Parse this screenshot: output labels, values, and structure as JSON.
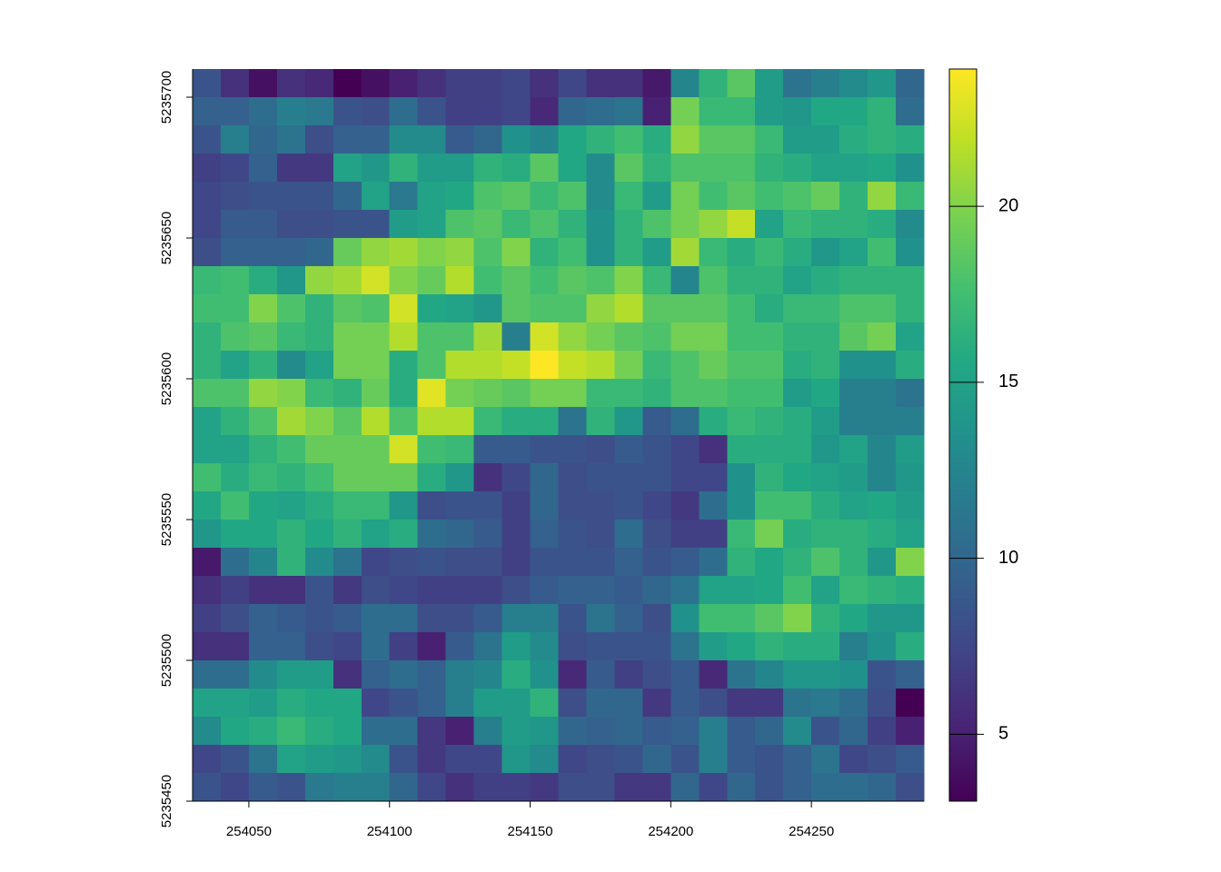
{
  "chart_data": {
    "type": "raster",
    "colormap": "viridis",
    "xlim": [
      254030,
      254290
    ],
    "ylim": [
      5235450,
      5235710
    ],
    "zlim": [
      3.1,
      23.9
    ],
    "xticks": [
      254050,
      254100,
      254150,
      254200,
      254250
    ],
    "yticks": [
      5235450,
      5235500,
      5235550,
      5235600,
      5235650,
      5235700
    ],
    "colorbar_ticks": [
      5,
      10,
      15,
      20
    ],
    "z": [
      [
        8.5,
        6,
        4,
        6,
        5.5,
        3.1,
        4,
        5,
        6,
        7,
        7,
        7.5,
        6,
        7.5,
        6,
        6,
        4.5,
        12.5,
        16.5,
        18.5,
        14.5,
        11,
        12,
        13,
        14,
        10
      ],
      [
        9.5,
        9.5,
        10.5,
        12,
        11.5,
        8.5,
        8,
        10.5,
        8.5,
        7,
        7,
        7.5,
        5.5,
        10,
        10.5,
        11,
        5,
        19.5,
        17,
        17,
        14.5,
        14,
        15.5,
        15.5,
        16.5,
        10.5
      ],
      [
        8.5,
        12,
        10,
        11,
        8,
        9.5,
        9.5,
        13,
        13,
        9,
        10,
        13.5,
        12.5,
        15.5,
        16.5,
        17.5,
        16,
        20.5,
        18.5,
        18.5,
        17,
        14.5,
        14.5,
        16,
        16.5,
        16
      ],
      [
        7,
        7.5,
        9.5,
        6.5,
        6.5,
        15,
        14,
        16.5,
        14.5,
        14.5,
        16.5,
        16,
        18.5,
        15.5,
        13,
        18.5,
        16.5,
        18,
        18,
        18,
        16.5,
        16,
        15,
        15,
        15.5,
        13.5
      ],
      [
        7.5,
        8,
        8.5,
        8.5,
        8.5,
        10,
        15,
        11.5,
        15,
        15.5,
        18,
        18.5,
        17,
        18,
        13,
        17,
        14.5,
        19.5,
        17.5,
        18.5,
        17.5,
        18,
        19,
        16.5,
        20.5,
        17
      ],
      [
        7.5,
        9,
        9,
        8,
        8,
        8.5,
        8.5,
        14.5,
        15,
        18,
        18.5,
        17,
        18,
        16.5,
        13.5,
        16.5,
        18,
        19.5,
        20.5,
        22,
        15,
        17,
        16.5,
        16.5,
        16,
        13
      ],
      [
        8,
        9.5,
        9.5,
        9.5,
        10,
        19,
        20.5,
        21,
        20,
        20.5,
        18,
        20,
        16.5,
        17.5,
        13.5,
        16.5,
        14.5,
        21,
        17,
        16,
        17,
        16,
        14,
        15,
        17.5,
        13.5
      ],
      [
        17,
        17.5,
        16,
        14,
        20.5,
        21,
        22.5,
        20,
        19,
        21.5,
        17.5,
        18.5,
        17.5,
        18.5,
        18,
        20,
        17,
        12.5,
        18,
        16.5,
        16.5,
        15,
        16,
        16.5,
        16.5,
        16.5
      ],
      [
        17.5,
        17.5,
        20,
        18,
        16.5,
        18.5,
        18,
        22.5,
        15.5,
        15,
        14,
        18.5,
        18,
        18,
        20.5,
        21.5,
        18.5,
        18.5,
        18.5,
        17.5,
        16,
        17,
        17,
        18,
        18,
        16.5
      ],
      [
        16.5,
        18,
        18.5,
        17,
        16.5,
        19.5,
        19.5,
        21.5,
        18,
        18,
        21,
        12,
        22.5,
        20.5,
        19.5,
        18.5,
        18,
        19.5,
        19.5,
        17.5,
        17.5,
        16.5,
        16.5,
        18.5,
        19.5,
        15
      ],
      [
        16.5,
        15,
        16.5,
        13,
        15,
        19.5,
        19.5,
        16,
        18,
        21.5,
        21.5,
        22,
        23.9,
        22,
        21.5,
        19.5,
        17,
        18,
        19,
        18,
        18,
        16,
        16.5,
        13.5,
        13.5,
        16
      ],
      [
        18,
        18,
        20.5,
        20,
        17,
        16.5,
        19,
        16,
        23,
        19.5,
        19,
        18.5,
        19.5,
        19.5,
        17,
        17,
        16.5,
        18,
        18,
        17.5,
        17.5,
        14.5,
        15.5,
        12,
        12,
        11
      ],
      [
        15,
        16.5,
        18,
        21,
        20,
        18.5,
        21.5,
        18,
        21.5,
        21.5,
        17,
        16,
        16,
        11,
        16.5,
        14,
        9,
        10.5,
        16,
        17,
        16.5,
        16,
        14.5,
        12,
        12,
        12
      ],
      [
        15,
        15,
        16.5,
        17.5,
        19,
        19,
        19,
        22.5,
        17.5,
        17,
        9,
        9,
        8.5,
        8.5,
        8,
        9,
        8.5,
        7.5,
        6,
        16,
        16,
        16,
        14,
        15,
        12.5,
        14.5
      ],
      [
        17.5,
        16,
        17,
        16.5,
        17.5,
        19,
        19,
        19,
        16,
        14,
        6,
        7.5,
        10,
        8,
        8.5,
        8.5,
        8.5,
        7.5,
        7.5,
        13.5,
        16.5,
        15.5,
        15,
        14.5,
        12.5,
        14
      ],
      [
        15.5,
        17.5,
        15.5,
        15,
        16,
        17,
        17,
        14,
        8,
        8.5,
        8.5,
        7,
        10,
        8,
        8,
        8.5,
        7.5,
        6.5,
        10.5,
        13.5,
        17.5,
        17.5,
        16,
        15,
        15.5,
        14.5
      ],
      [
        14,
        15.5,
        15.5,
        16.5,
        15.5,
        16.5,
        15,
        16,
        10.5,
        10,
        9,
        7,
        9.5,
        8.5,
        8,
        10.5,
        8,
        7,
        7,
        17,
        19.5,
        16,
        16.5,
        16.5,
        16,
        15
      ],
      [
        4.5,
        10.5,
        12.5,
        16.5,
        13,
        11,
        7.5,
        8,
        8.5,
        8,
        8,
        7,
        8.5,
        8.5,
        8.5,
        9.5,
        8.5,
        9,
        10.5,
        16.5,
        15.5,
        16.5,
        18,
        16.5,
        14,
        20
      ],
      [
        6,
        7,
        6,
        6,
        8.5,
        6.5,
        8,
        7.5,
        7,
        7,
        7,
        8,
        9,
        9.5,
        9.5,
        9,
        10,
        11,
        15,
        15,
        15.5,
        17.5,
        15,
        17,
        16.5,
        16
      ],
      [
        7,
        8,
        9.5,
        9,
        8.5,
        9,
        10.5,
        10.5,
        8,
        8,
        9,
        12,
        12,
        8.5,
        11,
        9.5,
        8,
        13.5,
        17.5,
        17.5,
        18.5,
        20,
        16.5,
        15.5,
        14,
        14
      ],
      [
        6,
        6,
        9.5,
        9.5,
        8,
        7.5,
        10.5,
        7,
        5,
        9,
        11,
        14.5,
        13,
        8,
        8.5,
        8.5,
        8.5,
        11,
        14.5,
        15.5,
        16.5,
        16,
        16,
        12,
        13.5,
        16
      ],
      [
        10.5,
        10.5,
        13,
        14.5,
        14.5,
        6,
        9.5,
        10.5,
        9.5,
        12,
        12.5,
        16,
        13.5,
        5.5,
        9,
        7,
        8,
        9,
        5.5,
        11,
        12.5,
        14,
        14,
        13.5,
        8.5,
        9.5
      ],
      [
        15,
        15,
        14.5,
        16,
        15.5,
        15.5,
        7.5,
        8.5,
        9.5,
        12,
        14.5,
        14.5,
        16.5,
        8,
        10,
        10,
        6.5,
        9,
        8,
        6.5,
        6.5,
        11,
        11.5,
        10.5,
        8,
        3.1
      ],
      [
        13,
        15.5,
        16,
        17,
        16,
        15.5,
        10.5,
        10.5,
        6.5,
        5,
        12,
        14.5,
        14,
        10,
        9.5,
        10,
        9,
        9.5,
        12,
        9,
        10,
        13,
        8.5,
        10,
        7,
        5
      ],
      [
        7.5,
        8.5,
        11,
        15,
        14.5,
        14,
        13,
        8.5,
        6.5,
        7.5,
        7.5,
        14,
        13,
        7.5,
        8,
        8.5,
        10,
        8.5,
        12,
        9,
        8.5,
        9.5,
        11,
        7.5,
        8,
        9
      ],
      [
        8.5,
        7.5,
        9,
        8.5,
        11.5,
        12,
        12,
        10,
        7.5,
        6,
        7,
        7,
        6.5,
        8,
        8,
        6.5,
        6.5,
        10,
        7.5,
        10,
        8.5,
        9.5,
        10.5,
        10.5,
        10,
        8
      ]
    ]
  }
}
